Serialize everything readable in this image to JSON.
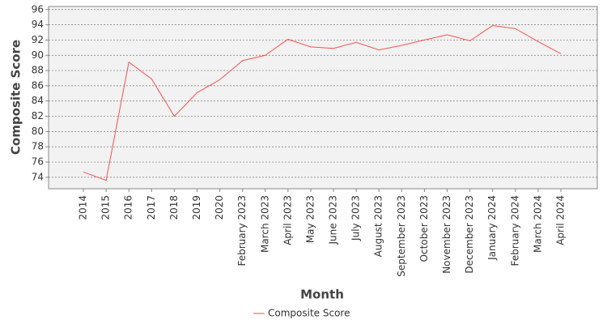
{
  "chart_data": {
    "type": "line",
    "x_label": "Month",
    "y_label": "Composite Score",
    "categories": [
      "2014",
      "2015",
      "2016",
      "2017",
      "2018",
      "2019",
      "2020",
      "February 2023",
      "March 2023",
      "April 2023",
      "May 2023",
      "June 2023",
      "July 2023",
      "August 2023",
      "September 2023",
      "October 2023",
      "November 2023",
      "December 2023",
      "January 2024",
      "February 2024",
      "March 2024",
      "April 2024"
    ],
    "series": [
      {
        "name": "Composite Score",
        "color": "#ff4d4d",
        "values": [
          74.7,
          73.6,
          89.1,
          86.9,
          82.0,
          85.1,
          86.8,
          89.3,
          90.0,
          92.1,
          91.1,
          90.9,
          91.7,
          90.7,
          91.3,
          92.0,
          92.7,
          91.9,
          93.9,
          93.5,
          91.8,
          90.2
        ]
      }
    ],
    "ylim": [
      72.5,
      96.4
    ],
    "yticks": [
      74,
      76,
      78,
      80,
      82,
      84,
      86,
      88,
      90,
      92,
      94,
      96
    ],
    "grid": true,
    "legend": "bottom"
  }
}
